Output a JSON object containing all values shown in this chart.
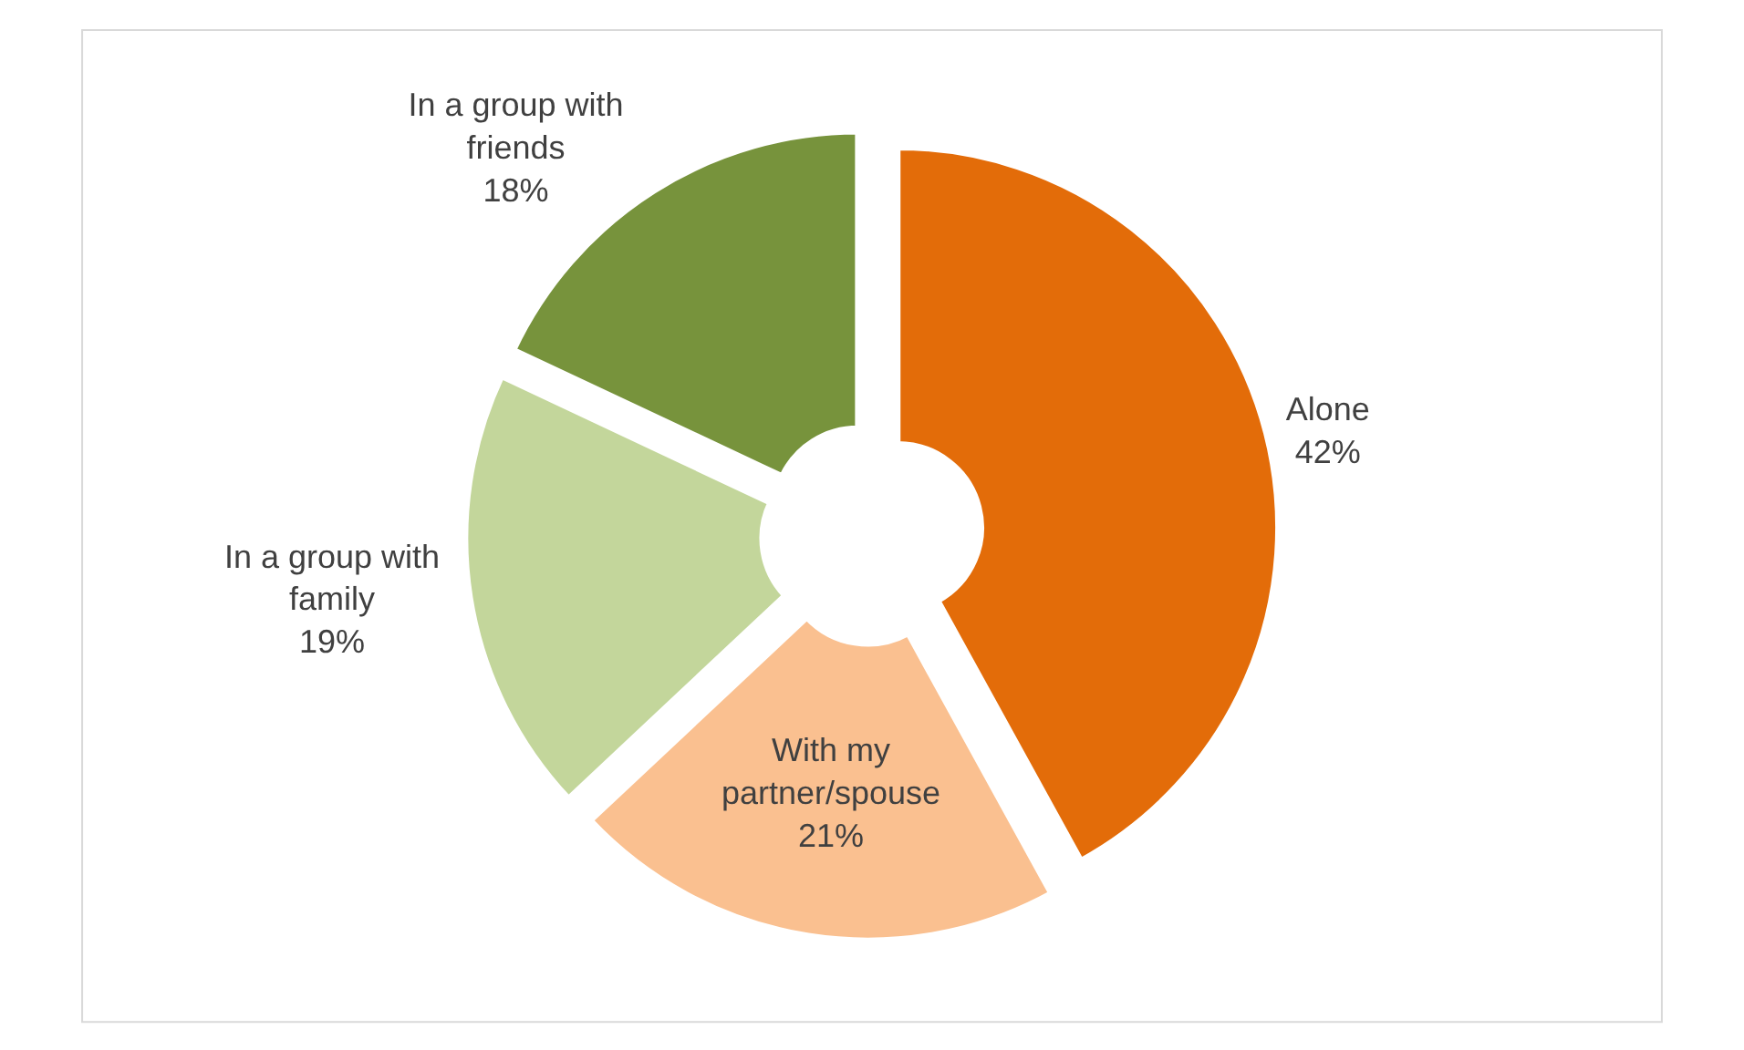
{
  "chart_data": {
    "type": "donut",
    "categories": [
      "Alone",
      "With my partner/spouse",
      "In a group with family",
      "In a group with friends"
    ],
    "values": [
      42,
      21,
      19,
      18
    ],
    "value_labels": [
      "42%",
      "21%",
      "19%",
      "18%"
    ],
    "colors": [
      "#e36c09",
      "#fac090",
      "#c3d69b",
      "#77933c"
    ],
    "legend": false
  }
}
